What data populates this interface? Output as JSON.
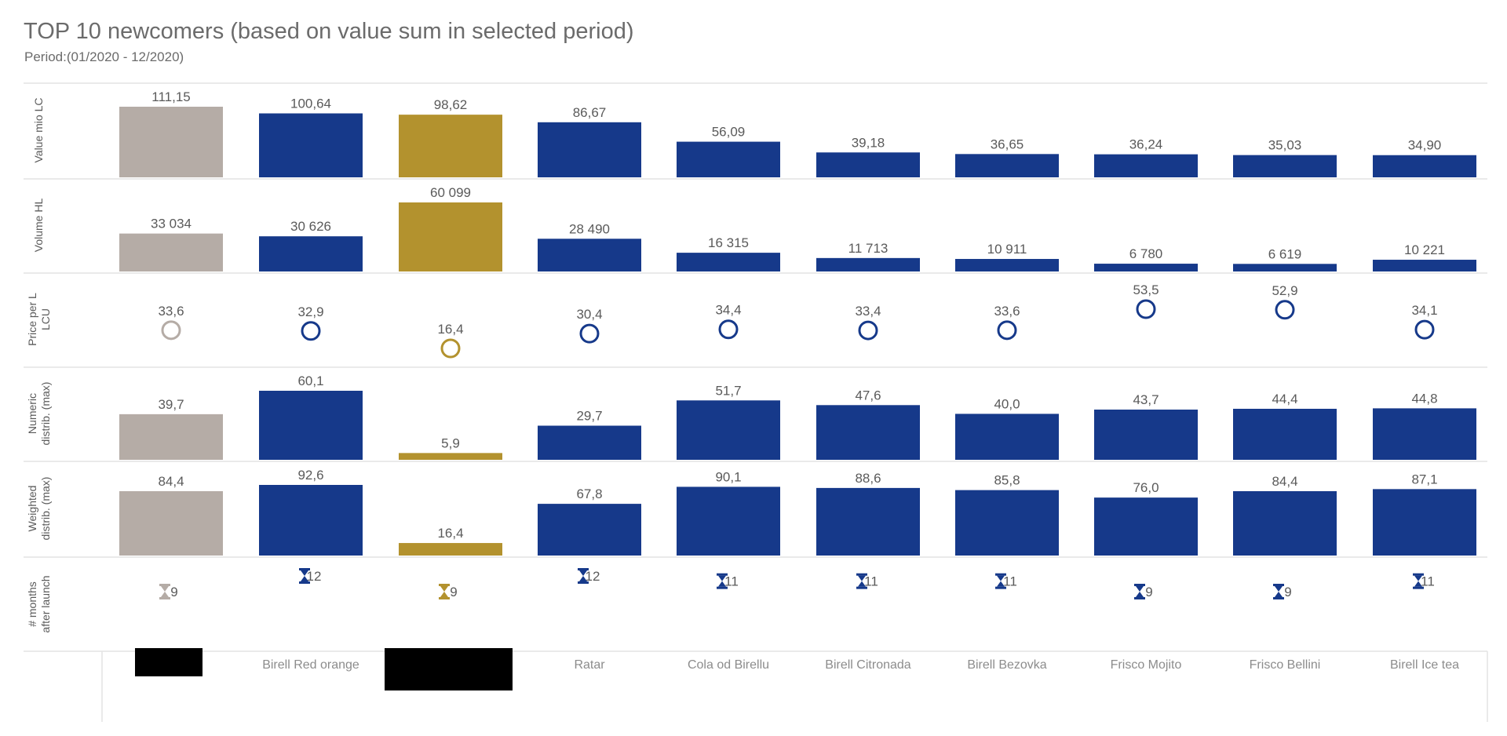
{
  "header": {
    "title": "TOP 10 newcomers (based on value sum in selected period)",
    "subtitle": "Period:(01/2020 - 12/2020)"
  },
  "colors": {
    "grey": "#b5aca6",
    "blue": "#16398a",
    "gold": "#b3922e",
    "rule": "#e3e3e3"
  },
  "chart_data": {
    "type": "bar",
    "categories": [
      "",
      "Birell Red orange",
      "",
      "Ratar",
      "Cola od Birellu",
      "Birell Citronada",
      "Birell Bezovka",
      "Frisco Mojito",
      "Frisco Bellini",
      "Birell Ice tea"
    ],
    "category_redacted": [
      true,
      false,
      true,
      false,
      false,
      false,
      false,
      false,
      false,
      false
    ],
    "bar_colors": [
      "grey",
      "blue",
      "gold",
      "blue",
      "blue",
      "blue",
      "blue",
      "blue",
      "blue",
      "blue"
    ],
    "rows": [
      {
        "name": "Value mio LC",
        "label_lines": [
          "Value mio LC"
        ],
        "mark": "bar",
        "values": [
          111.15,
          100.64,
          98.62,
          86.67,
          56.09,
          39.18,
          36.65,
          36.24,
          35.03,
          34.9
        ],
        "labels": [
          "111,15",
          "100,64",
          "98,62",
          "86,67",
          "56,09",
          "39,18",
          "36,65",
          "36,24",
          "35,03",
          "34,90"
        ],
        "ylim": [
          0,
          111.15
        ]
      },
      {
        "name": "Volume HL",
        "label_lines": [
          "Volume HL"
        ],
        "mark": "bar",
        "values": [
          33034,
          30626,
          60099,
          28490,
          16315,
          11713,
          10911,
          6780,
          6619,
          10221
        ],
        "labels": [
          "33 034",
          "30 626",
          "60 099",
          "28 490",
          "16 315",
          "11 713",
          "10 911",
          "6 780",
          "6 619",
          "10 221"
        ],
        "ylim": [
          0,
          60099
        ]
      },
      {
        "name": "Price per L LCU",
        "label_lines": [
          "Price per L",
          "LCU"
        ],
        "mark": "circle",
        "values": [
          33.6,
          32.9,
          16.4,
          30.4,
          34.4,
          33.4,
          33.6,
          53.5,
          52.9,
          34.1
        ],
        "labels": [
          "33,6",
          "32,9",
          "16,4",
          "30,4",
          "34,4",
          "33,4",
          "33,6",
          "53,5",
          "52,9",
          "34,1"
        ],
        "ylim": [
          16.4,
          53.5
        ]
      },
      {
        "name": "Numeric distrib. (max)",
        "label_lines": [
          "Numeric",
          "distrib. (max)"
        ],
        "mark": "bar",
        "values": [
          39.7,
          60.1,
          5.9,
          29.7,
          51.7,
          47.6,
          40.0,
          43.7,
          44.4,
          44.8
        ],
        "labels": [
          "39,7",
          "60,1",
          "5,9",
          "29,7",
          "51,7",
          "47,6",
          "40,0",
          "43,7",
          "44,4",
          "44,8"
        ],
        "ylim": [
          0,
          60.1
        ]
      },
      {
        "name": "Weighted distrib. (max)",
        "label_lines": [
          "Weighted",
          "distrib. (max)"
        ],
        "mark": "bar",
        "values": [
          84.4,
          92.6,
          16.4,
          67.8,
          90.1,
          88.6,
          85.8,
          76.0,
          84.4,
          87.1
        ],
        "labels": [
          "84,4",
          "92,6",
          "16,4",
          "67,8",
          "90,1",
          "88,6",
          "85,8",
          "76,0",
          "84,4",
          "87,1"
        ],
        "ylim": [
          0,
          92.6
        ]
      },
      {
        "name": "# months after launch",
        "label_lines": [
          "# months",
          "after launch"
        ],
        "mark": "hourglass",
        "icon": "hourglass-icon",
        "values": [
          9,
          12,
          9,
          12,
          11,
          11,
          11,
          9,
          9,
          11
        ],
        "labels": [
          "9",
          "12",
          "9",
          "12",
          "11",
          "11",
          "11",
          "9",
          "9",
          "11"
        ],
        "ylim": [
          9,
          12
        ]
      }
    ]
  }
}
